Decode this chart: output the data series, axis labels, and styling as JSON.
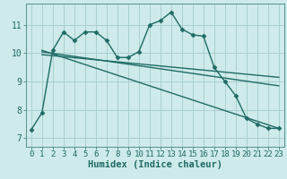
{
  "title": "",
  "xlabel": "Humidex (Indice chaleur)",
  "bg_color": "#ceeaea",
  "grid_color": "#aacfcf",
  "line_color": "#1e6b65",
  "spine_color": "#5a9090",
  "xlim": [
    -0.5,
    23.5
  ],
  "ylim": [
    6.7,
    11.75
  ],
  "xticks": [
    0,
    1,
    2,
    3,
    4,
    5,
    6,
    7,
    8,
    9,
    10,
    11,
    12,
    13,
    14,
    15,
    16,
    17,
    18,
    19,
    20,
    21,
    22,
    23
  ],
  "yticks": [
    7,
    8,
    9,
    10,
    11
  ],
  "curve1_x": [
    0,
    1,
    2,
    3,
    4,
    5,
    6,
    7,
    8,
    9,
    10,
    11,
    12,
    13,
    14,
    15,
    16,
    17,
    18,
    19,
    20,
    21,
    22,
    23
  ],
  "curve1_y": [
    7.3,
    7.9,
    10.1,
    10.75,
    10.45,
    10.75,
    10.75,
    10.45,
    9.85,
    9.85,
    10.05,
    11.0,
    11.15,
    11.45,
    10.85,
    10.65,
    10.6,
    9.5,
    9.0,
    8.5,
    7.7,
    7.5,
    7.35,
    7.35
  ],
  "line1_x": [
    1,
    23
  ],
  "line1_y": [
    10.1,
    7.35
  ],
  "line2_x": [
    1,
    23
  ],
  "line2_y": [
    10.05,
    8.85
  ],
  "line3_x": [
    1,
    23
  ],
  "line3_y": [
    9.95,
    9.15
  ],
  "xlabel_fontsize": 7.5,
  "tick_fontsize": 7,
  "marker": "D",
  "markersize": 2.5,
  "linewidth": 1.0
}
